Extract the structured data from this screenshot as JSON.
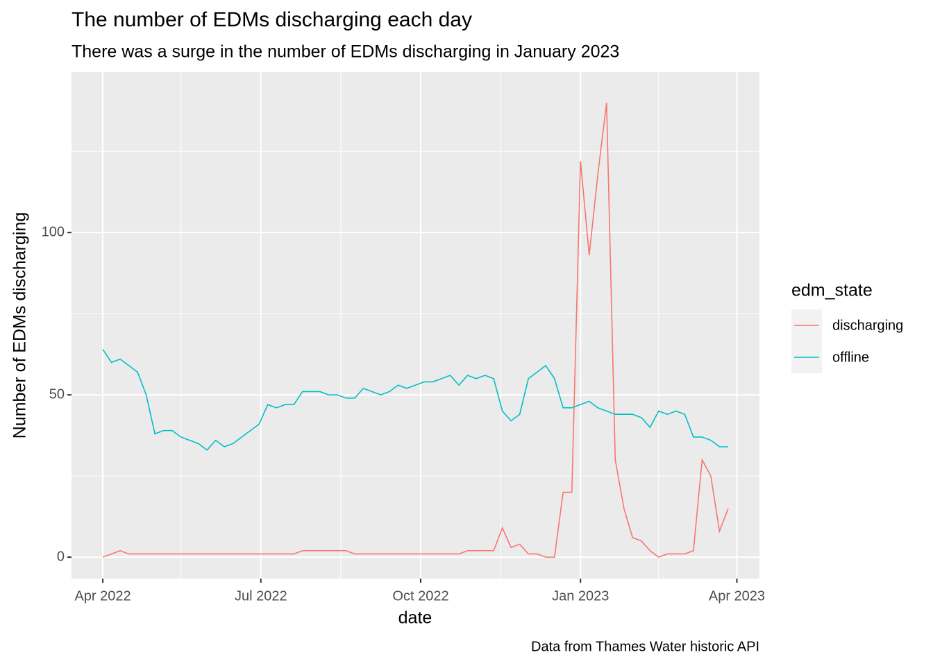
{
  "chart_data": {
    "type": "line",
    "title": "The number of EDMs discharging each day",
    "subtitle": "There was a surge in the number of EDMs discharging in January 2023",
    "caption": "Data from Thames Water historic API",
    "x_label": "date",
    "y_label": "Number of EDMs discharging",
    "legend_title": "edm_state",
    "legend_position": "right",
    "grid": true,
    "x": [
      "2022-04-01",
      "2022-04-06",
      "2022-04-11",
      "2022-04-16",
      "2022-04-21",
      "2022-04-26",
      "2022-05-01",
      "2022-05-06",
      "2022-05-11",
      "2022-05-16",
      "2022-05-21",
      "2022-05-26",
      "2022-05-31",
      "2022-06-05",
      "2022-06-10",
      "2022-06-15",
      "2022-06-20",
      "2022-06-25",
      "2022-06-30",
      "2022-07-05",
      "2022-07-10",
      "2022-07-15",
      "2022-07-20",
      "2022-07-25",
      "2022-07-30",
      "2022-08-04",
      "2022-08-09",
      "2022-08-14",
      "2022-08-19",
      "2022-08-24",
      "2022-08-29",
      "2022-09-03",
      "2022-09-08",
      "2022-09-13",
      "2022-09-18",
      "2022-09-23",
      "2022-09-28",
      "2022-10-03",
      "2022-10-08",
      "2022-10-13",
      "2022-10-18",
      "2022-10-23",
      "2022-10-28",
      "2022-11-02",
      "2022-11-07",
      "2022-11-12",
      "2022-11-17",
      "2022-11-22",
      "2022-11-27",
      "2022-12-02",
      "2022-12-07",
      "2022-12-12",
      "2022-12-17",
      "2022-12-22",
      "2022-12-27",
      "2023-01-01",
      "2023-01-06",
      "2023-01-11",
      "2023-01-16",
      "2023-01-21",
      "2023-01-26",
      "2023-01-31",
      "2023-02-05",
      "2023-02-10",
      "2023-02-15",
      "2023-02-20",
      "2023-02-25",
      "2023-03-02",
      "2023-03-07",
      "2023-03-12",
      "2023-03-17",
      "2023-03-22",
      "2023-03-27"
    ],
    "series": [
      {
        "name": "discharging",
        "color": "#F8766D",
        "values": [
          0,
          1,
          2,
          1,
          1,
          1,
          1,
          1,
          1,
          1,
          1,
          1,
          1,
          1,
          1,
          1,
          1,
          1,
          1,
          1,
          1,
          1,
          1,
          2,
          2,
          2,
          2,
          2,
          2,
          1,
          1,
          1,
          1,
          1,
          1,
          1,
          1,
          1,
          1,
          1,
          1,
          1,
          2,
          2,
          2,
          2,
          9,
          3,
          4,
          1,
          1,
          0,
          0,
          20,
          20,
          122,
          93,
          118,
          140,
          30,
          15,
          6,
          5,
          2,
          0,
          1,
          1,
          1,
          2,
          30,
          25,
          8,
          15
        ]
      },
      {
        "name": "offline",
        "color": "#00BFC4",
        "values": [
          64,
          60,
          61,
          59,
          57,
          50,
          38,
          39,
          39,
          37,
          36,
          35,
          33,
          36,
          34,
          35,
          37,
          39,
          41,
          47,
          46,
          47,
          47,
          51,
          51,
          51,
          50,
          50,
          49,
          49,
          52,
          51,
          50,
          51,
          53,
          52,
          53,
          54,
          54,
          55,
          56,
          53,
          56,
          55,
          56,
          55,
          45,
          42,
          44,
          55,
          57,
          59,
          55,
          46,
          46,
          47,
          48,
          46,
          45,
          44,
          44,
          44,
          43,
          40,
          45,
          44,
          45,
          44,
          37,
          37,
          36,
          34,
          34
        ]
      }
    ],
    "xlim": [
      "2022-03-14",
      "2023-04-14"
    ],
    "xticks": [
      {
        "value": "2022-04-01",
        "label": "Apr 2022"
      },
      {
        "value": "2022-07-01",
        "label": "Jul 2022"
      },
      {
        "value": "2022-10-01",
        "label": "Oct 2022"
      },
      {
        "value": "2023-01-01",
        "label": "Jan 2023"
      },
      {
        "value": "2023-04-01",
        "label": "Apr 2023"
      }
    ],
    "x_minor_ticks": [
      "2022-05-16",
      "2022-08-16",
      "2022-11-16",
      "2023-02-15"
    ],
    "ylim": [
      -6.6,
      149.4
    ],
    "yticks": [
      0,
      50,
      100
    ],
    "y_minor_ticks": [
      25,
      75,
      125
    ]
  }
}
